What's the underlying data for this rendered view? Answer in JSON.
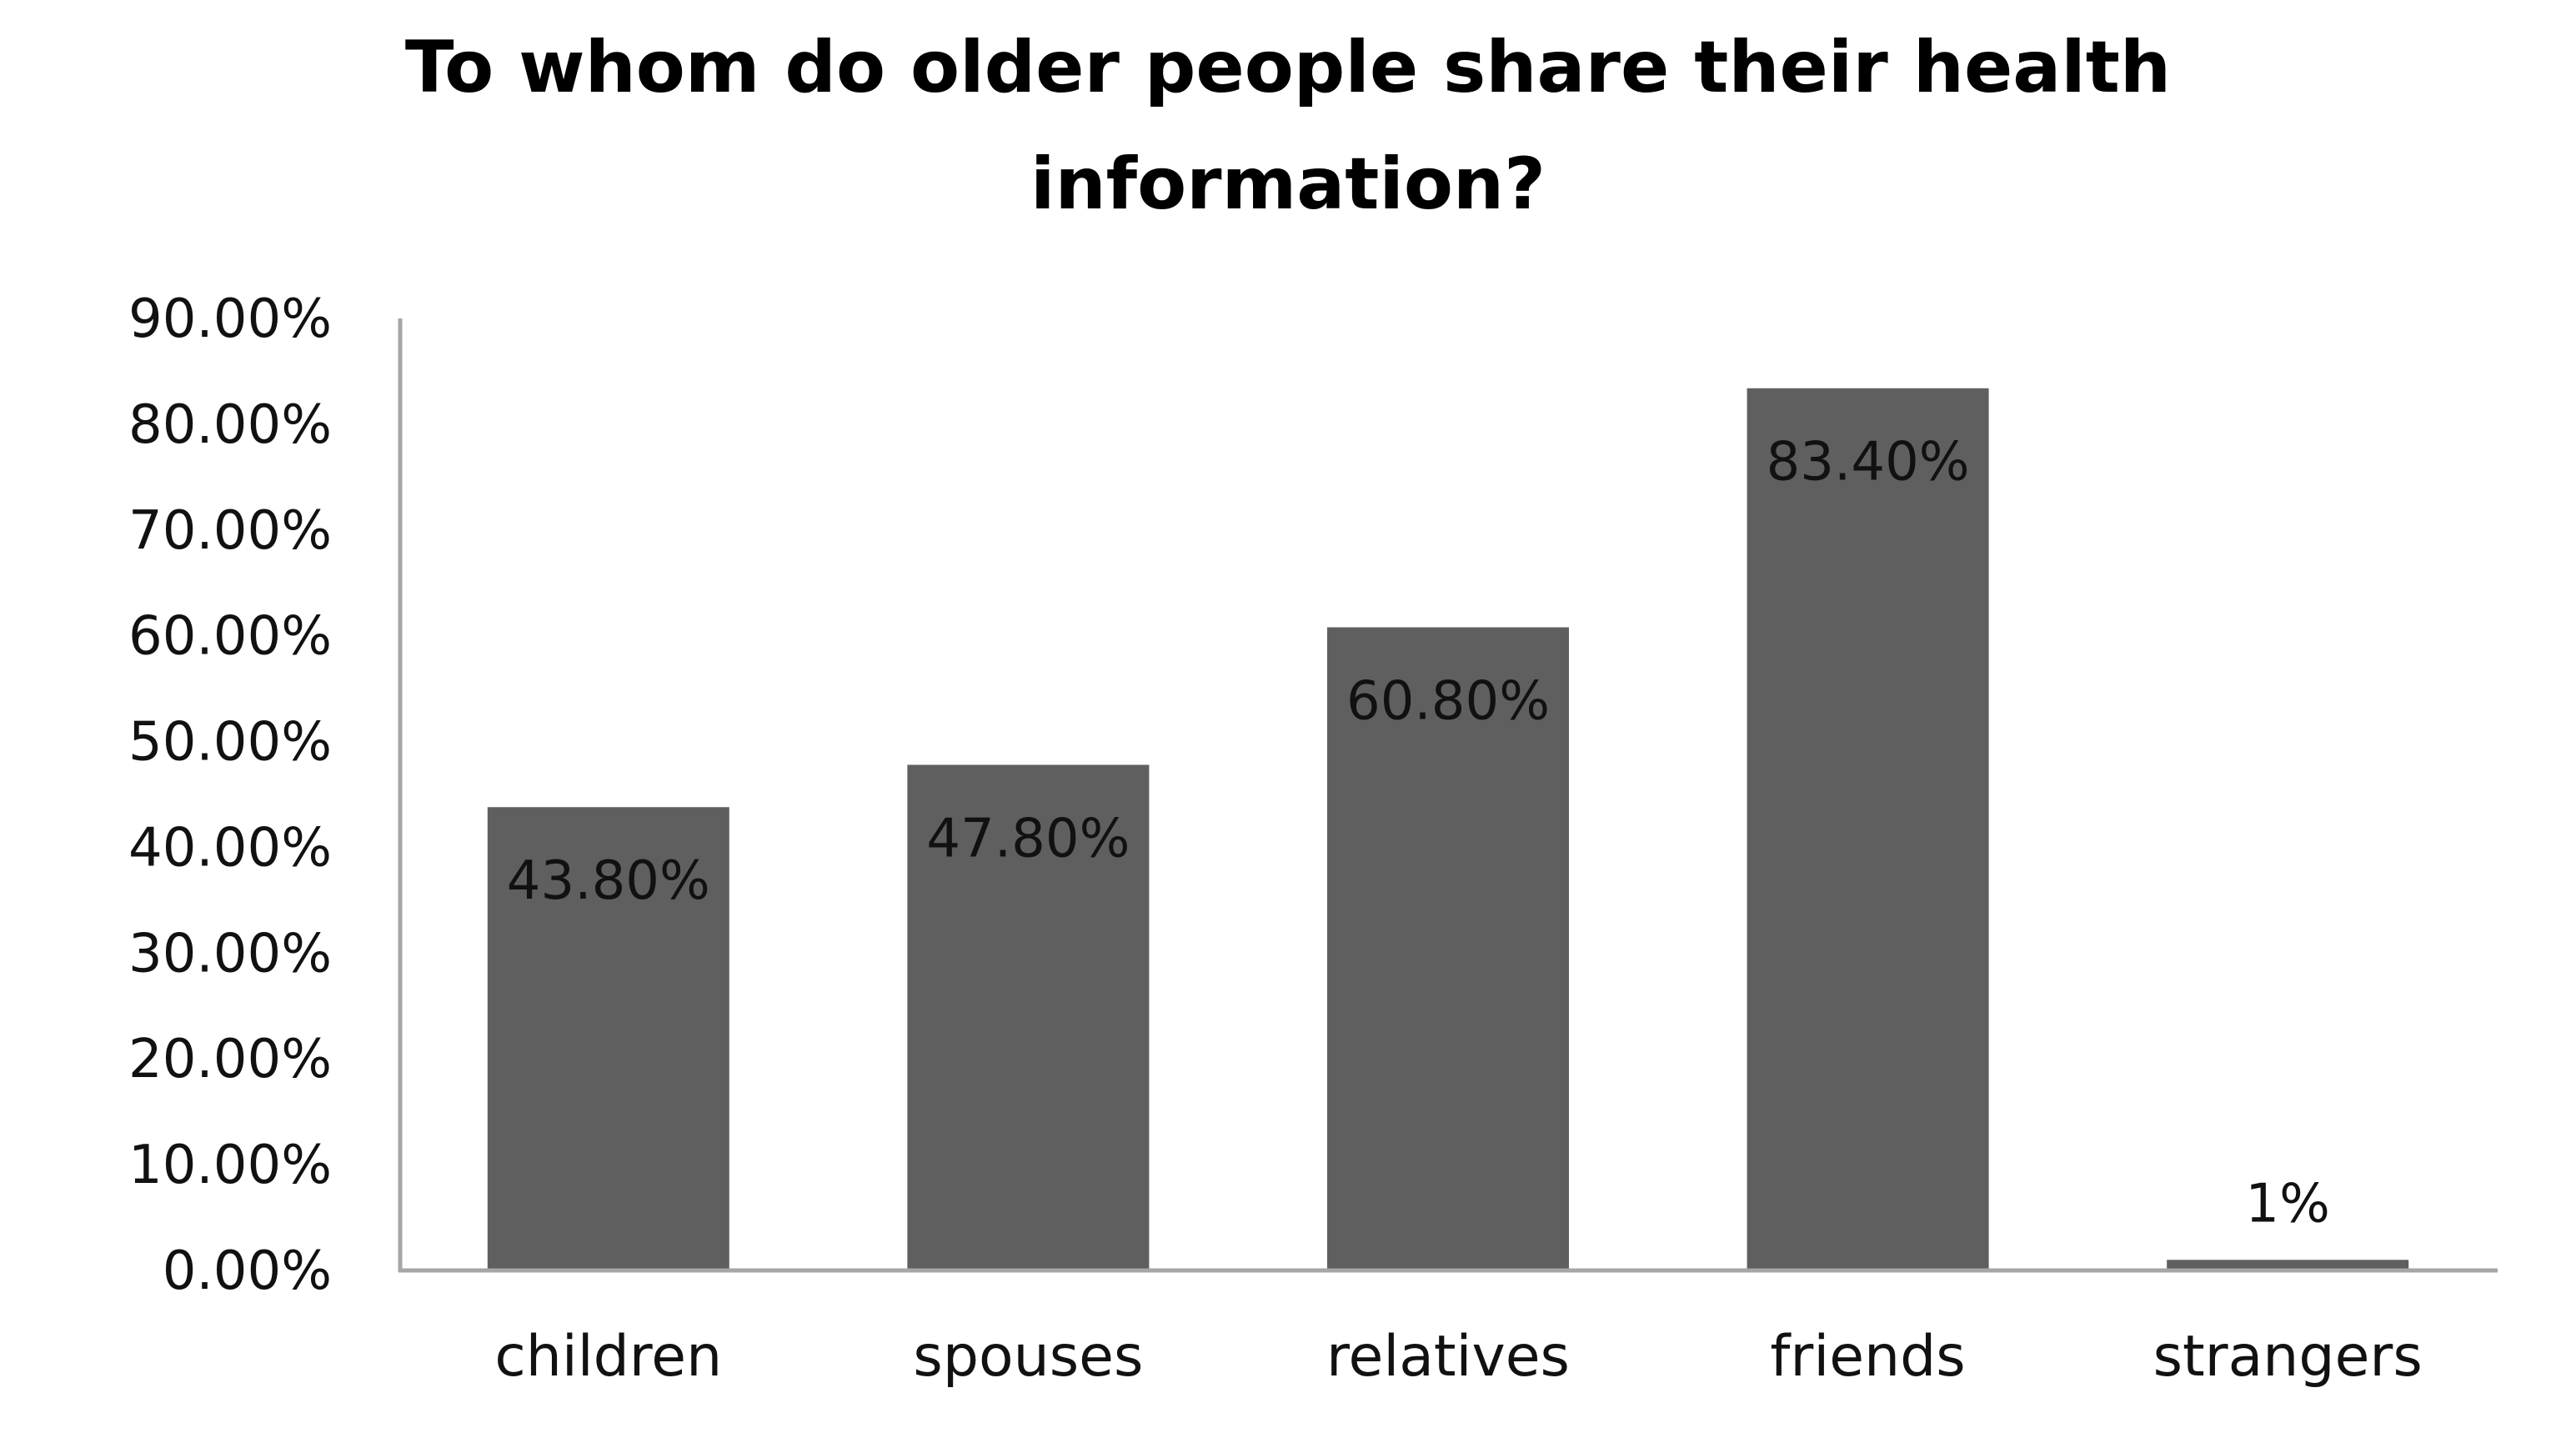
{
  "chart_data": {
    "type": "bar",
    "title_lines": [
      "To whom do older people share their health",
      "information?"
    ],
    "categories": [
      "children",
      "spouses",
      "relatives",
      "friends",
      "strangers"
    ],
    "values": [
      43.8,
      47.8,
      60.8,
      83.4,
      1
    ],
    "data_labels": [
      "43.80%",
      "47.80%",
      "60.80%",
      "83.40%",
      "1%"
    ],
    "ylim": [
      0,
      90
    ],
    "yticks": [
      0,
      10,
      20,
      30,
      40,
      50,
      60,
      70,
      80,
      90
    ],
    "ytick_labels": [
      "0.00%",
      "10.00%",
      "20.00%",
      "30.00%",
      "40.00%",
      "50.00%",
      "60.00%",
      "70.00%",
      "80.00%",
      "90.00%"
    ],
    "xlabel": "",
    "ylabel": "",
    "grid": false,
    "legend": "none",
    "bar_color": "#5f5f5f",
    "axis_color": "#a6a6a6"
  }
}
